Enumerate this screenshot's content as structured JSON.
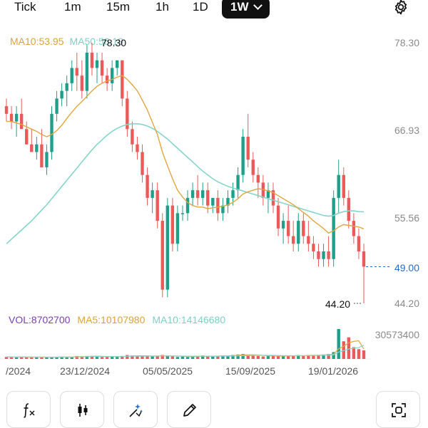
{
  "timeframes": [
    {
      "label": "Tick"
    },
    {
      "label": "1m"
    },
    {
      "label": "15m"
    },
    {
      "label": "1h"
    },
    {
      "label": "1D"
    },
    {
      "label": "1W",
      "active": true
    }
  ],
  "settings_icon": "gear-icon",
  "ma_legend": {
    "ma10": "MA10:53.95",
    "ma50": "MA50:56.19"
  },
  "price_axis": [
    "78.30",
    "66.93",
    "55.56",
    "49.00",
    "44.20"
  ],
  "high_label": "78.30",
  "low_label": "44.20",
  "last_price": "49.00",
  "vol_legend": {
    "vol": "VOL:8702700",
    "ma5": "MA5:10107980",
    "ma10": "MA10:14146680"
  },
  "vol_axis": "30573400",
  "dates": [
    "/2024",
    "23/12/2024",
    "05/05/2025",
    "15/09/2025",
    "19/01/2026"
  ],
  "tools": [
    {
      "icon": "formula-fx-icon"
    },
    {
      "icon": "candlestick-icon"
    },
    {
      "icon": "magic-draw-icon"
    },
    {
      "icon": "pencil-icon"
    },
    {
      "icon": "fullscreen-icon"
    }
  ],
  "colors": {
    "up": "#1f9e8a",
    "down": "#ea5a5a",
    "ma10": "#e0a640",
    "ma50": "#86d4cc",
    "last": "#2a6cc4"
  },
  "chart_data": {
    "type": "candlestick",
    "price_range": [
      44.2,
      78.3
    ],
    "ohlc": [
      [
        70,
        71,
        68,
        69
      ],
      [
        69,
        70,
        67,
        68
      ],
      [
        68,
        70,
        66,
        69
      ],
      [
        69,
        71,
        67,
        67
      ],
      [
        67,
        68,
        65,
        65
      ],
      [
        65,
        67,
        64,
        64
      ],
      [
        64,
        66,
        63,
        65
      ],
      [
        65,
        67,
        62,
        62
      ],
      [
        62,
        65,
        61,
        64
      ],
      [
        64,
        70,
        63,
        69
      ],
      [
        69,
        72,
        68,
        71
      ],
      [
        71,
        73,
        70,
        72
      ],
      [
        72,
        74,
        70,
        73
      ],
      [
        73,
        76,
        72,
        75
      ],
      [
        75,
        77,
        72,
        74
      ],
      [
        74,
        76,
        71,
        72
      ],
      [
        72,
        78,
        71,
        77
      ],
      [
        77,
        78.3,
        74,
        75
      ],
      [
        75,
        77,
        73,
        76
      ],
      [
        76,
        77,
        73,
        74
      ],
      [
        74,
        75,
        72,
        73
      ],
      [
        73,
        76,
        72,
        75
      ],
      [
        75,
        76,
        74,
        76
      ],
      [
        76,
        76,
        70,
        71
      ],
      [
        71,
        72,
        66,
        67
      ],
      [
        67,
        68,
        64,
        65
      ],
      [
        65,
        66,
        63,
        64
      ],
      [
        64,
        65,
        60,
        61
      ],
      [
        61,
        62,
        57,
        58
      ],
      [
        58,
        60,
        56,
        59
      ],
      [
        59,
        60,
        54,
        55
      ],
      [
        55,
        56,
        45,
        46
      ],
      [
        46,
        58,
        45,
        57
      ],
      [
        57,
        58,
        51,
        52
      ],
      [
        52,
        57,
        51,
        56
      ],
      [
        56,
        57,
        55,
        56
      ],
      [
        56,
        59,
        55,
        58
      ],
      [
        58,
        60,
        57,
        59
      ],
      [
        59,
        61,
        57,
        58
      ],
      [
        58,
        60,
        57,
        59
      ],
      [
        59,
        60,
        56,
        57
      ],
      [
        57,
        58,
        56,
        58
      ],
      [
        58,
        59,
        55,
        56
      ],
      [
        56,
        58,
        55,
        57
      ],
      [
        57,
        59,
        56,
        58
      ],
      [
        58,
        60,
        57,
        59
      ],
      [
        59,
        62,
        58,
        61
      ],
      [
        61,
        67,
        60,
        66
      ],
      [
        66,
        69,
        62,
        63
      ],
      [
        63,
        64,
        60,
        61
      ],
      [
        61,
        62,
        58,
        60
      ],
      [
        60,
        61,
        57,
        58
      ],
      [
        58,
        60,
        56,
        59
      ],
      [
        59,
        60,
        56,
        57
      ],
      [
        57,
        58,
        53,
        54
      ],
      [
        54,
        56,
        52,
        55
      ],
      [
        55,
        57,
        52,
        53
      ],
      [
        53,
        55,
        51,
        52
      ],
      [
        52,
        56,
        51,
        55
      ],
      [
        55,
        56,
        52,
        53
      ],
      [
        53,
        55,
        51,
        52
      ],
      [
        52,
        53,
        50,
        51
      ],
      [
        51,
        52,
        49,
        50
      ],
      [
        50,
        52,
        49,
        51
      ],
      [
        51,
        53,
        49,
        50
      ],
      [
        50,
        59,
        49,
        58
      ],
      [
        58,
        63,
        56,
        61
      ],
      [
        61,
        62,
        57,
        58
      ],
      [
        58,
        59,
        54,
        55
      ],
      [
        55,
        56,
        52,
        53
      ],
      [
        53,
        54,
        50,
        51
      ],
      [
        51,
        52,
        44.2,
        49
      ]
    ],
    "ma10": [
      68,
      68,
      67.8,
      67.6,
      67.3,
      67,
      66.7,
      66.3,
      66,
      66.3,
      66.8,
      67.5,
      68.4,
      69.2,
      70,
      70.6,
      71.3,
      72,
      72.6,
      73,
      73.3,
      73.5,
      73.8,
      74,
      73.5,
      72.8,
      72,
      70.8,
      69.5,
      67.9,
      66.3,
      64,
      62.2,
      60.5,
      59,
      58.1,
      57.4,
      57,
      56.8,
      56.8,
      56.6,
      56.7,
      56.8,
      56.9,
      57.1,
      57.4,
      57.9,
      58.5,
      58.8,
      59,
      59.2,
      59.1,
      58.9,
      58.7,
      58.3,
      57.9,
      57.5,
      57.1,
      56.6,
      56.1,
      55.6,
      55,
      54.5,
      54,
      53.4,
      53.7,
      54.2,
      54.5,
      54.4,
      54.3,
      54.2,
      53.95
    ],
    "ma50": [
      52,
      52.6,
      53.2,
      53.8,
      54.4,
      55,
      55.7,
      56.4,
      57.1,
      57.9,
      58.7,
      59.5,
      60.3,
      61.1,
      61.9,
      62.7,
      63.5,
      64.3,
      65,
      65.6,
      66.2,
      66.7,
      67.1,
      67.4,
      67.6,
      67.7,
      67.7,
      67.6,
      67.4,
      67.1,
      66.7,
      66.2,
      65.7,
      65.1,
      64.5,
      63.9,
      63.3,
      62.7,
      62.1,
      61.5,
      61,
      60.5,
      60.1,
      59.8,
      59.5,
      59.3,
      59.1,
      58.9,
      58.7,
      58.5,
      58.3,
      58.1,
      57.9,
      57.7,
      57.5,
      57.3,
      57.1,
      56.9,
      56.7,
      56.5,
      56.3,
      56.1,
      55.9,
      55.7,
      55.6,
      55.7,
      56,
      56.2,
      56.3,
      56.3,
      56.2,
      56.19
    ],
    "volume": [
      2,
      2,
      1.5,
      2,
      1.5,
      2,
      1.5,
      2,
      1.5,
      2,
      2,
      2.5,
      2,
      2,
      3,
      2.5,
      3,
      3,
      2.5,
      2,
      2,
      2.5,
      2,
      3,
      4,
      3.5,
      3,
      2.5,
      3,
      2.5,
      3,
      4,
      3,
      2.5,
      2,
      2.5,
      2,
      2.5,
      3,
      3.5,
      3,
      2.5,
      3,
      3.5,
      3,
      4,
      4.5,
      5,
      4,
      3.5,
      3,
      2.5,
      3,
      3.5,
      3,
      2.5,
      3,
      3.5,
      4,
      3.5,
      4,
      3.5,
      4,
      4.5,
      5,
      7,
      30.5,
      18,
      22,
      12,
      10,
      8.7
    ],
    "vol_ma5": [
      2,
      2,
      2,
      2,
      1.8,
      1.8,
      1.8,
      1.8,
      1.8,
      1.8,
      1.8,
      2,
      2,
      2,
      2.3,
      2.4,
      2.5,
      2.7,
      2.8,
      2.6,
      2.5,
      2.4,
      2.3,
      2.4,
      2.7,
      3,
      3.2,
      3.2,
      3.2,
      2.9,
      2.9,
      3.1,
      3,
      3,
      2.9,
      2.8,
      2.4,
      2.3,
      2.4,
      2.7,
      2.8,
      2.8,
      2.9,
      3.1,
      3.1,
      3.3,
      3.6,
      4,
      4.1,
      4.2,
      3.9,
      3.6,
      3.2,
      3.1,
      3,
      3,
      3,
      3.1,
      3.3,
      3.3,
      3.5,
      3.7,
      3.8,
      3.9,
      4.2,
      4.8,
      10.3,
      12.8,
      16.5,
      17.9,
      18.5,
      10.1
    ],
    "vol_ma10": [
      2,
      2,
      2,
      2,
      2,
      1.9,
      1.9,
      1.9,
      1.8,
      1.8,
      1.8,
      1.9,
      1.9,
      1.9,
      2,
      2.2,
      2.3,
      2.4,
      2.5,
      2.4,
      2.4,
      2.4,
      2.4,
      2.5,
      2.7,
      2.8,
      2.8,
      2.8,
      2.9,
      2.9,
      3,
      3.1,
      3.1,
      3,
      2.9,
      2.9,
      2.8,
      2.8,
      2.8,
      2.8,
      2.8,
      2.7,
      2.7,
      2.8,
      2.9,
      3,
      3.1,
      3.3,
      3.4,
      3.6,
      3.6,
      3.6,
      3.6,
      3.6,
      3.5,
      3.4,
      3.3,
      3.3,
      3.4,
      3.3,
      3.4,
      3.5,
      3.6,
      3.7,
      3.9,
      4.3,
      7,
      8.4,
      10.1,
      11,
      11.5,
      14.1
    ]
  }
}
